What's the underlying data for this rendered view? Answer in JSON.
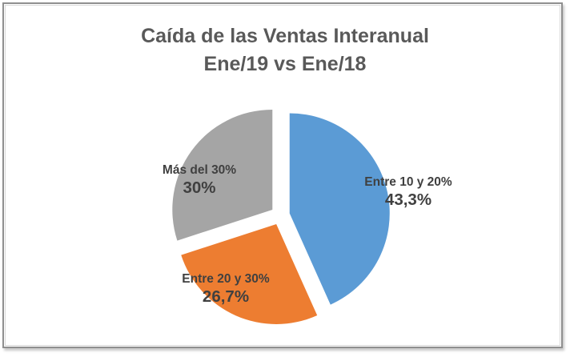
{
  "chart_data": {
    "type": "pie",
    "title": "Caída de las Ventas Interanual Ene/19 vs Ene/18",
    "title_lines": [
      "Caída de las Ventas Interanual",
      "Ene/19 vs Ene/18"
    ],
    "categories": [
      "Entre 10 y 20%",
      "Entre 20 y 30%",
      "Más del 30%"
    ],
    "values": [
      43.3,
      26.7,
      30
    ],
    "slices": [
      {
        "label": "Entre 10 y 20%",
        "value": 43.3,
        "value_label": "43,3%",
        "color": "#5B9BD5"
      },
      {
        "label": "Entre 20 y 30%",
        "value": 26.7,
        "value_label": "26,7%",
        "color": "#ED7D31"
      },
      {
        "label": "Más del 30%",
        "value": 30,
        "value_label": "30%",
        "color": "#A5A5A5"
      }
    ],
    "start_angle_deg": 0,
    "direction": "clockwise",
    "exploded": true,
    "legend": "none",
    "grid": "off",
    "title_color": "#595959",
    "label_text_color": "#404040",
    "frame_border_color": "#8f8f8f",
    "background_color": "#ffffff"
  }
}
